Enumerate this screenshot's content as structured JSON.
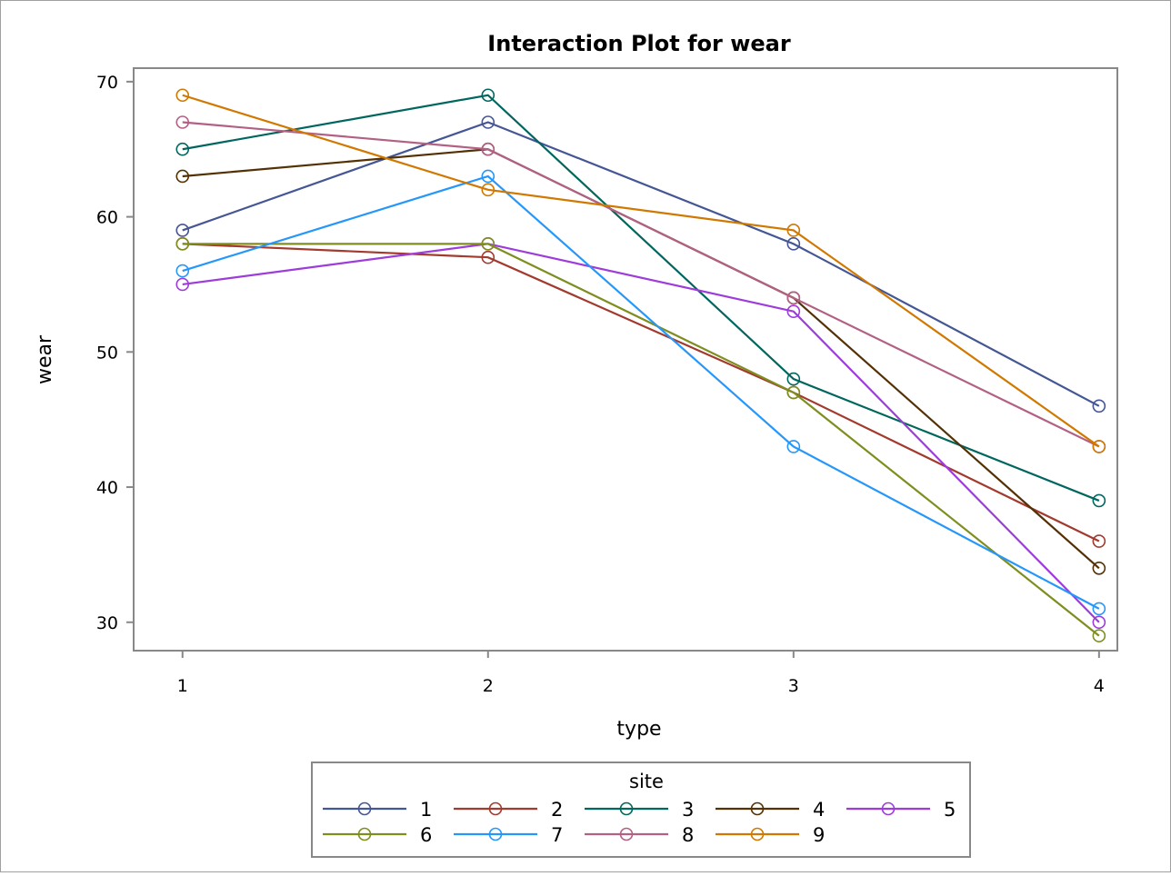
{
  "chart_data": {
    "type": "line",
    "title": "Interaction Plot for wear",
    "xlabel": "type",
    "ylabel": "wear",
    "x": [
      1,
      2,
      3,
      4
    ],
    "xlim": [
      0.84,
      4.06
    ],
    "ylim": [
      27.9,
      71.0
    ],
    "yticks": [
      30,
      40,
      50,
      60,
      70
    ],
    "grid": false,
    "marker": "open-circle",
    "legend": {
      "title": "site",
      "position": "bottom"
    },
    "series": [
      {
        "name": "1",
        "color": "#445694",
        "values": [
          59,
          67,
          58,
          46
        ]
      },
      {
        "name": "2",
        "color": "#A23A2E",
        "values": [
          58,
          57,
          47,
          36
        ]
      },
      {
        "name": "3",
        "color": "#01665E",
        "values": [
          65,
          69,
          48,
          39
        ]
      },
      {
        "name": "4",
        "color": "#543005",
        "values": [
          63,
          65,
          54,
          34
        ]
      },
      {
        "name": "5",
        "color": "#9D3CDB",
        "values": [
          55,
          58,
          53,
          30
        ]
      },
      {
        "name": "6",
        "color": "#7F8E1F",
        "values": [
          58,
          58,
          47,
          29
        ]
      },
      {
        "name": "7",
        "color": "#2597FA",
        "values": [
          56,
          63,
          43,
          31
        ]
      },
      {
        "name": "8",
        "color": "#B26084",
        "values": [
          67,
          65,
          54,
          43
        ]
      },
      {
        "name": "9",
        "color": "#D17800",
        "values": [
          69,
          62,
          59,
          43
        ]
      }
    ]
  }
}
